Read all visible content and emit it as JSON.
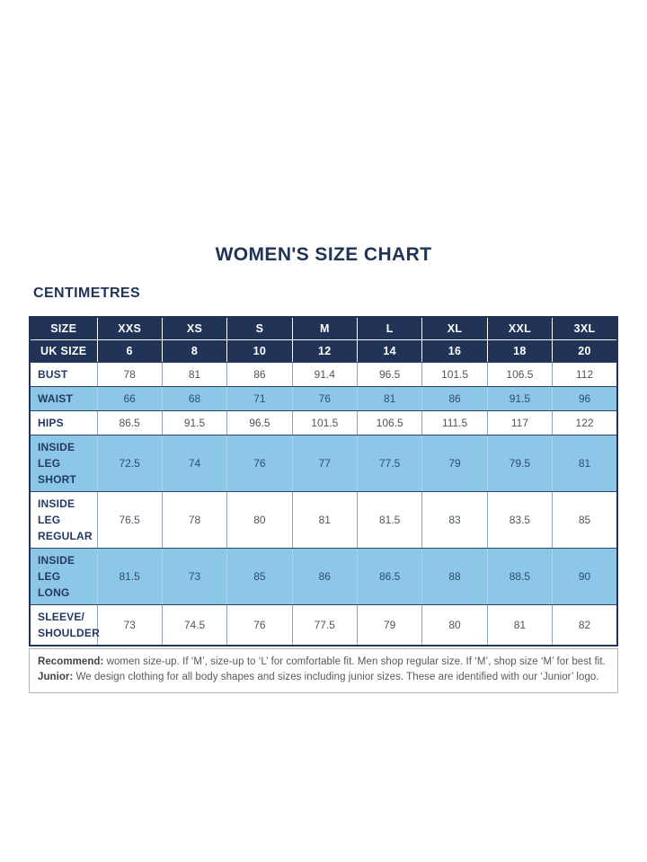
{
  "page": {
    "title": "WOMEN'S SIZE CHART",
    "unit_heading": "CENTIMETRES"
  },
  "colors": {
    "header_navy": "#213457",
    "shaded_row_blue": "#8cc7e8",
    "title_navy": "#213457",
    "value_text": "#4e555e",
    "note_text": "#58595b",
    "note_border": "#b3b3b3"
  },
  "chart_data": {
    "type": "table",
    "title": "WOMEN'S SIZE CHART",
    "unit": "CENTIMETRES",
    "columns": [
      "SIZE",
      "XXS",
      "XS",
      "S",
      "M",
      "L",
      "XL",
      "XXL",
      "3XL"
    ],
    "uk_size_row": {
      "label": "UK SIZE",
      "values": [
        "6",
        "8",
        "10",
        "12",
        "14",
        "16",
        "18",
        "20"
      ]
    },
    "rows": [
      {
        "label": "BUST",
        "values": [
          "78",
          "81",
          "86",
          "91.4",
          "96.5",
          "101.5",
          "106.5",
          "112"
        ]
      },
      {
        "label": "WAIST",
        "values": [
          "66",
          "68",
          "71",
          "76",
          "81",
          "86",
          "91.5",
          "96"
        ]
      },
      {
        "label": "HIPS",
        "values": [
          "86.5",
          "91.5",
          "96.5",
          "101.5",
          "106.5",
          "111.5",
          "117",
          "122"
        ]
      },
      {
        "label": "INSIDE LEG\nSHORT",
        "values": [
          "72.5",
          "74",
          "76",
          "77",
          "77.5",
          "79",
          "79.5",
          "81"
        ]
      },
      {
        "label": "INSIDE LEG\nREGULAR",
        "values": [
          "76.5",
          "78",
          "80",
          "81",
          "81.5",
          "83",
          "83.5",
          "85"
        ]
      },
      {
        "label": "INSIDE LEG\nLONG",
        "values": [
          "81.5",
          "73",
          "85",
          "86",
          "86.5",
          "88",
          "88.5",
          "90"
        ]
      },
      {
        "label": "SLEEVE/\nSHOULDER",
        "values": [
          "73",
          "74.5",
          "76",
          "77.5",
          "79",
          "80",
          "81",
          "82"
        ]
      }
    ],
    "notes": [
      {
        "label": "Recommend:",
        "text": " women size-up. If ‘M’, size-up to ‘L’ for comfortable fit. Men shop regular size. If ‘M’, shop size ‘M’ for best fit."
      },
      {
        "label": "Junior:",
        "text": " We design clothing for all body shapes and sizes including junior sizes. These are identified with our ‘Junior’ logo."
      }
    ]
  }
}
